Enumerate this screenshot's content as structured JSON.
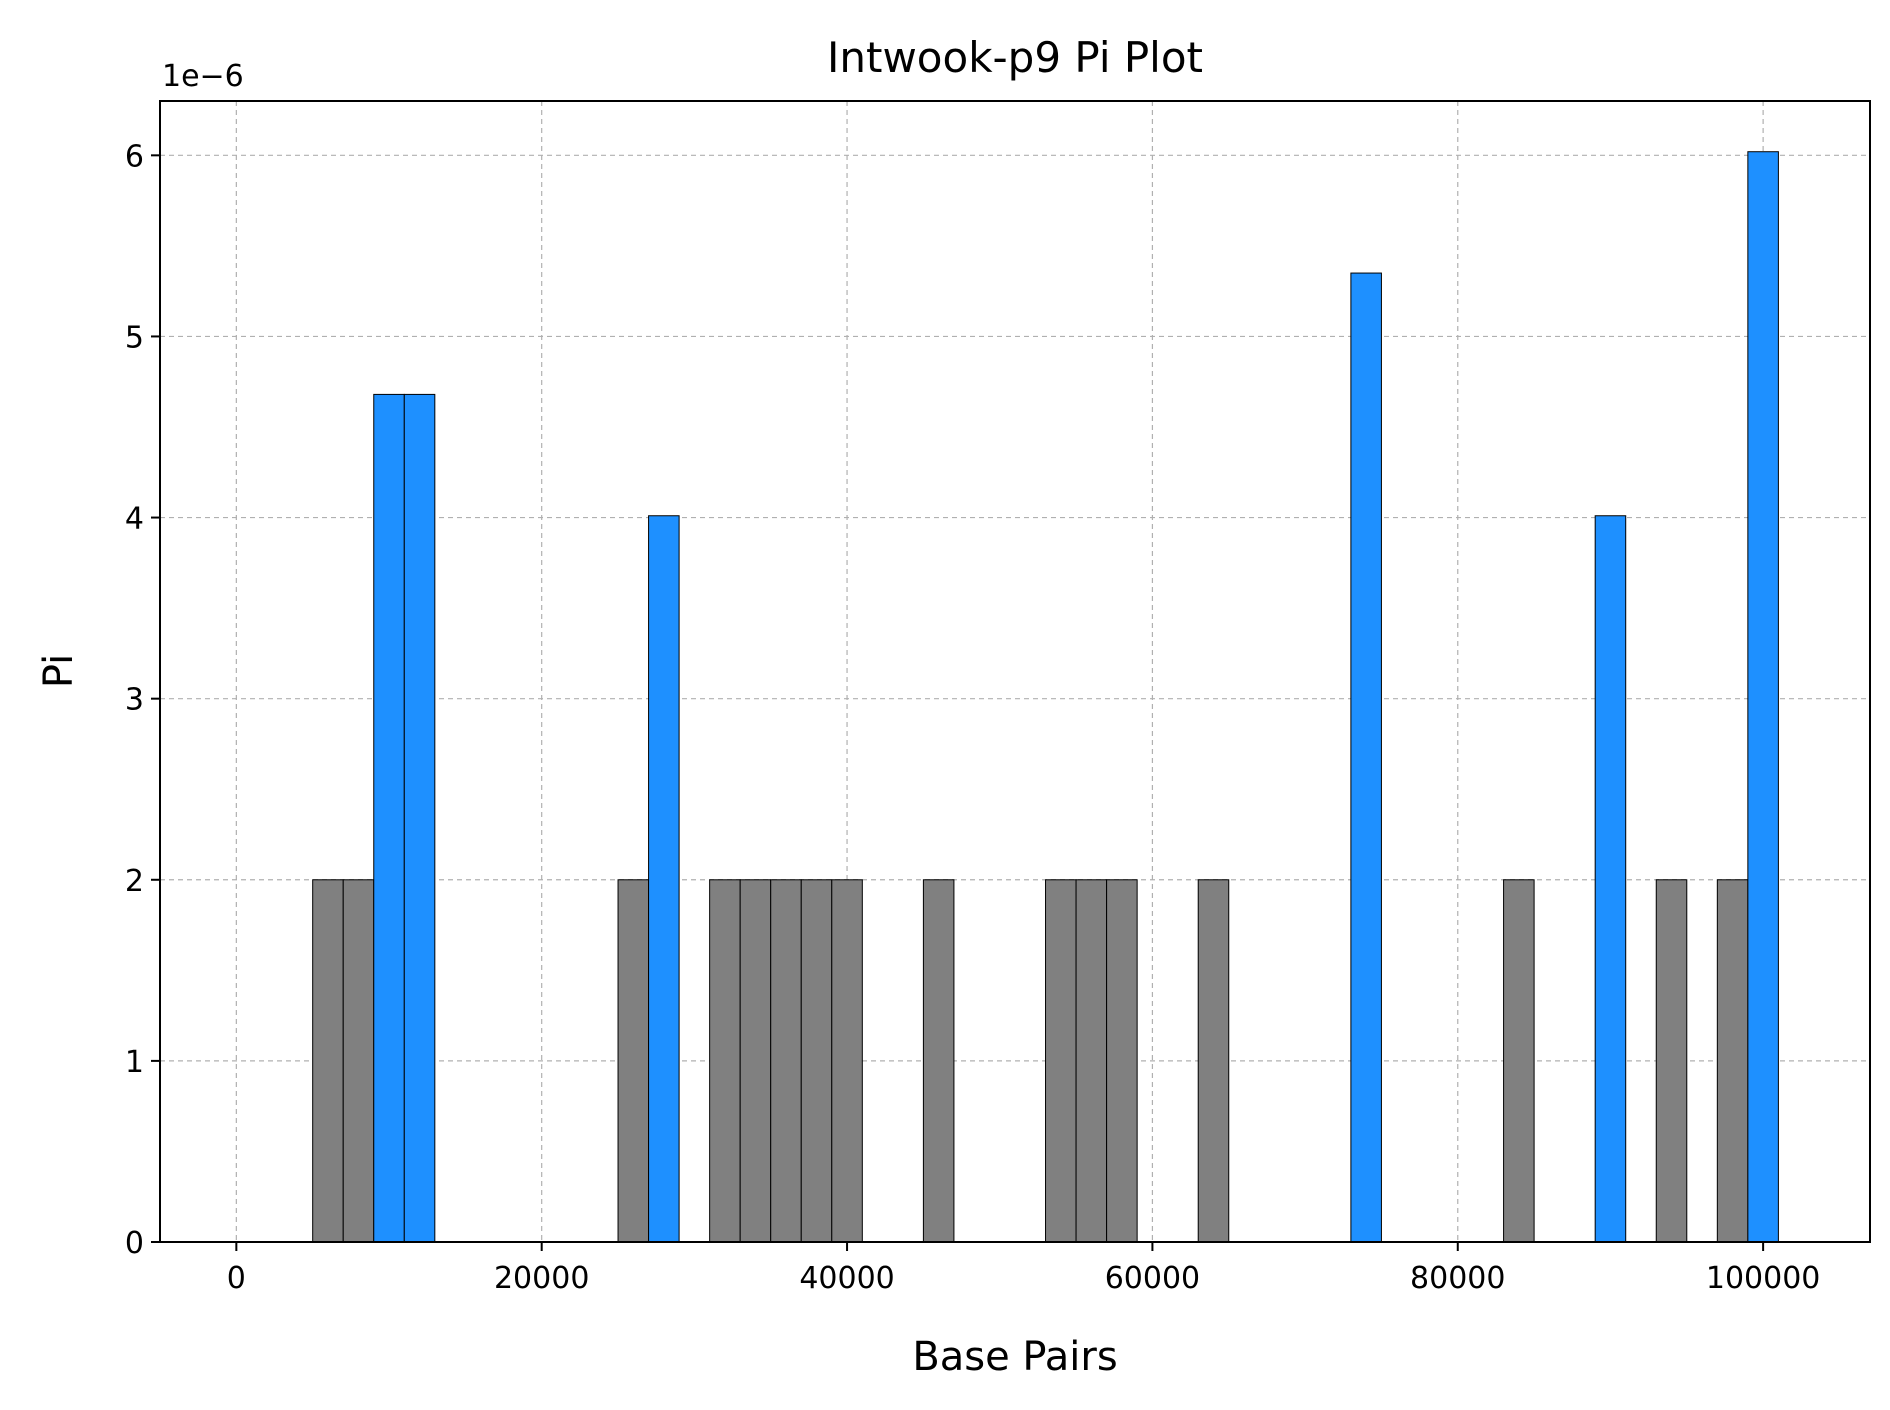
{
  "chart_data": {
    "type": "bar",
    "title": "Intwook-p9 Pi Plot",
    "xlabel": "Base Pairs",
    "ylabel": "Pi",
    "y_offset_label": "1e−6",
    "xlim": [
      -5000,
      107000
    ],
    "ylim": [
      0,
      6.3
    ],
    "y_scale_note": "values in units of 1e-6",
    "grid": true,
    "bar_width": 2000,
    "x_ticks": [
      0,
      20000,
      40000,
      60000,
      80000,
      100000
    ],
    "x_tick_labels": [
      "0",
      "20000",
      "40000",
      "60000",
      "80000",
      "100000"
    ],
    "y_ticks": [
      0,
      1,
      2,
      3,
      4,
      5,
      6
    ],
    "y_tick_labels": [
      "0",
      "1",
      "2",
      "3",
      "4",
      "5",
      "6"
    ],
    "colors": {
      "low": "#808080",
      "high": "#1E90FF",
      "edge": "#000000",
      "grid": "#b0b0b0"
    },
    "bars": [
      {
        "x": 6000,
        "value": 2.0,
        "color_group": "low"
      },
      {
        "x": 8000,
        "value": 2.0,
        "color_group": "low"
      },
      {
        "x": 10000,
        "value": 4.68,
        "color_group": "high"
      },
      {
        "x": 12000,
        "value": 4.68,
        "color_group": "high"
      },
      {
        "x": 26000,
        "value": 2.0,
        "color_group": "low"
      },
      {
        "x": 28000,
        "value": 4.01,
        "color_group": "high"
      },
      {
        "x": 32000,
        "value": 2.0,
        "color_group": "low"
      },
      {
        "x": 34000,
        "value": 2.0,
        "color_group": "low"
      },
      {
        "x": 36000,
        "value": 2.0,
        "color_group": "low"
      },
      {
        "x": 38000,
        "value": 2.0,
        "color_group": "low"
      },
      {
        "x": 40000,
        "value": 2.0,
        "color_group": "low"
      },
      {
        "x": 46000,
        "value": 2.0,
        "color_group": "low"
      },
      {
        "x": 54000,
        "value": 2.0,
        "color_group": "low"
      },
      {
        "x": 56000,
        "value": 2.0,
        "color_group": "low"
      },
      {
        "x": 58000,
        "value": 2.0,
        "color_group": "low"
      },
      {
        "x": 64000,
        "value": 2.0,
        "color_group": "low"
      },
      {
        "x": 74000,
        "value": 5.35,
        "color_group": "high"
      },
      {
        "x": 84000,
        "value": 2.0,
        "color_group": "low"
      },
      {
        "x": 90000,
        "value": 4.01,
        "color_group": "high"
      },
      {
        "x": 94000,
        "value": 2.0,
        "color_group": "low"
      },
      {
        "x": 98000,
        "value": 2.0,
        "color_group": "low"
      },
      {
        "x": 100000,
        "value": 6.02,
        "color_group": "high"
      }
    ]
  }
}
